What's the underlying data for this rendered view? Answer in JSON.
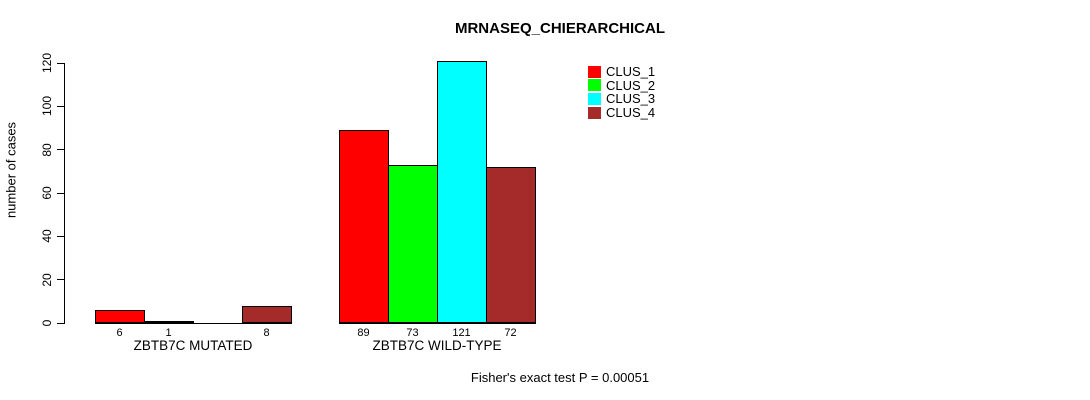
{
  "title": "MRNASEQ_CHIERARCHICAL",
  "y_axis": {
    "label": "number of cases",
    "ticks": [
      0,
      20,
      40,
      60,
      80,
      100,
      120
    ]
  },
  "footer": {
    "annotation": "Fisher's exact test P = 0.00051"
  },
  "legend": {
    "items": [
      {
        "label": "CLUS_1",
        "color": "#FF0000"
      },
      {
        "label": "CLUS_2",
        "color": "#00FF00"
      },
      {
        "label": "CLUS_3",
        "color": "#00FFFF"
      },
      {
        "label": "CLUS_4",
        "color": "#A52A2A"
      }
    ]
  },
  "chart_data": {
    "type": "bar",
    "title": "MRNASEQ_CHIERARCHICAL",
    "xlabel": "",
    "ylabel": "number of cases",
    "ylim": [
      0,
      120
    ],
    "yticks": [
      0,
      20,
      40,
      60,
      80,
      100,
      120
    ],
    "categories": [
      "ZBTB7C MUTATED",
      "ZBTB7C WILD-TYPE"
    ],
    "series": [
      {
        "name": "CLUS_1",
        "color": "#FF0000",
        "values": [
          6,
          89
        ]
      },
      {
        "name": "CLUS_2",
        "color": "#00FF00",
        "values": [
          1,
          73
        ]
      },
      {
        "name": "CLUS_3",
        "color": "#00FFFF",
        "values": [
          0,
          121
        ]
      },
      {
        "name": "CLUS_4",
        "color": "#A52A2A",
        "values": [
          8,
          72
        ]
      }
    ],
    "bar_value_labels": [
      [
        "6",
        "1",
        "",
        "8"
      ],
      [
        "89",
        "73",
        "121",
        "72"
      ]
    ],
    "annotation": "Fisher's exact test P = 0.00051",
    "legend_position": "top-right",
    "grid": false,
    "bar_border_color": "#000000"
  }
}
